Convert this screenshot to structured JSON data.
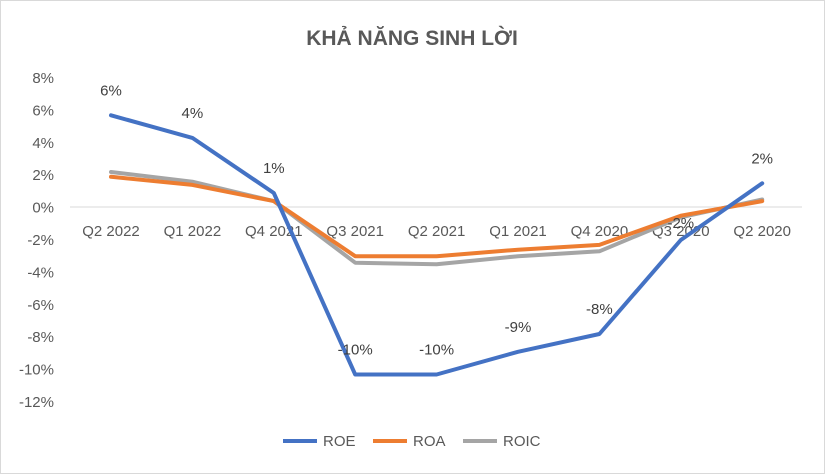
{
  "chart_data": {
    "type": "line",
    "title": "KHẢ NĂNG SINH LỜI",
    "categories": [
      "Q2 2022",
      "Q1 2022",
      "Q4 2021",
      "Q3 2021",
      "Q2 2021",
      "Q1 2021",
      "Q4 2020",
      "Q3 2020",
      "Q2 2020"
    ],
    "y_ticks": [
      "8%",
      "6%",
      "4%",
      "2%",
      "0%",
      "-2%",
      "-4%",
      "-6%",
      "-8%",
      "-10%",
      "-12%"
    ],
    "ylim": [
      -12,
      8
    ],
    "y_step": 2,
    "grid": false,
    "legend_position": "bottom",
    "series": [
      {
        "name": "ROE",
        "color": "#4472C4",
        "values": [
          5.7,
          4.3,
          0.9,
          -10.3,
          -10.3,
          -8.9,
          -7.8,
          -2.0,
          1.5
        ],
        "labels": [
          "6%",
          "4%",
          "1%",
          "-10%",
          "-10%",
          "-9%",
          "-8%",
          "-2%",
          "2%"
        ]
      },
      {
        "name": "ROA",
        "color": "#ED7D31",
        "values": [
          1.9,
          1.4,
          0.4,
          -3.0,
          -3.0,
          -2.6,
          -2.3,
          -0.5,
          0.4
        ]
      },
      {
        "name": "ROIC",
        "color": "#A5A5A5",
        "values": [
          2.2,
          1.6,
          0.4,
          -3.4,
          -3.5,
          -3.0,
          -2.7,
          -0.6,
          0.5
        ]
      }
    ]
  }
}
